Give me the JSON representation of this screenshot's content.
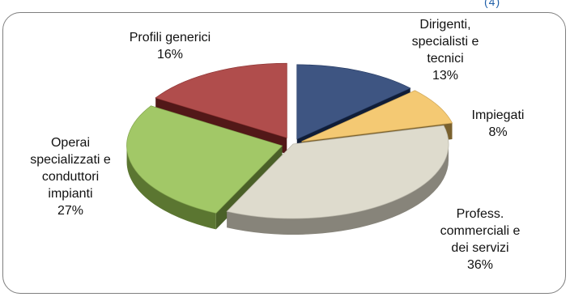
{
  "corner_label": "(4)",
  "chart_data": {
    "type": "pie",
    "slices": [
      {
        "label_lines": [
          "Dirigenti,",
          "specialisti e",
          "tecnici"
        ],
        "value": 13,
        "value_text": "13%",
        "color": "#1f3a6e"
      },
      {
        "label_lines": [
          "Impiegati"
        ],
        "value": 8,
        "value_text": "8%",
        "color": "#f3c15c"
      },
      {
        "label_lines": [
          "Profess.",
          "commerciali e",
          "dei servizi"
        ],
        "value": 36,
        "value_text": "36%",
        "color": "#d9d5c5"
      },
      {
        "label_lines": [
          "Operai",
          "specializzati e",
          "conduttori",
          "impianti"
        ],
        "value": 27,
        "value_text": "27%",
        "color": "#93bf4f"
      },
      {
        "label_lines": [
          "Profili generici"
        ],
        "value": 16,
        "value_text": "16%",
        "color": "#a3302f"
      }
    ]
  }
}
